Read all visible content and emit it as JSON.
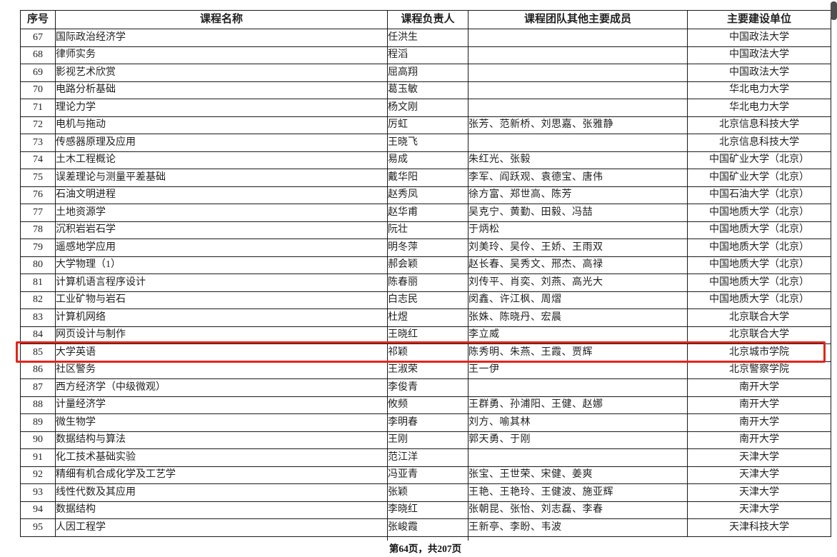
{
  "table": {
    "headers": [
      "序号",
      "课程名称",
      "课程负责人",
      "课程团队其他主要成员",
      "主要建设单位"
    ],
    "highlighted_row_no": "85",
    "rows": [
      {
        "no": "67",
        "course": "国际政治经济学",
        "leader": "任洪生",
        "members": "",
        "unit": "中国政法大学"
      },
      {
        "no": "68",
        "course": "律师实务",
        "leader": "程滔",
        "members": "",
        "unit": "中国政法大学"
      },
      {
        "no": "69",
        "course": "影视艺术欣赏",
        "leader": "屈高翔",
        "members": "",
        "unit": "中国政法大学"
      },
      {
        "no": "70",
        "course": "电路分析基础",
        "leader": "葛玉敏",
        "members": "",
        "unit": "华北电力大学"
      },
      {
        "no": "71",
        "course": "理论力学",
        "leader": "杨文刚",
        "members": "",
        "unit": "华北电力大学"
      },
      {
        "no": "72",
        "course": "电机与拖动",
        "leader": "厉虹",
        "members": "张芳、范新桥、刘思嘉、张雅静",
        "unit": "北京信息科技大学"
      },
      {
        "no": "73",
        "course": "传感器原理及应用",
        "leader": "王晓飞",
        "members": "",
        "unit": "北京信息科技大学"
      },
      {
        "no": "74",
        "course": "土木工程概论",
        "leader": "易成",
        "members": "朱红光、张毅",
        "unit": "中国矿业大学（北京）"
      },
      {
        "no": "75",
        "course": "误差理论与测量平差基础",
        "leader": "戴华阳",
        "members": "李军、阎跃观、袁德宝、唐伟",
        "unit": "中国矿业大学（北京）"
      },
      {
        "no": "76",
        "course": "石油文明进程",
        "leader": "赵秀凤",
        "members": "徐方富、郑世高、陈芳",
        "unit": "中国石油大学（北京）"
      },
      {
        "no": "77",
        "course": "土地资源学",
        "leader": "赵华甫",
        "members": "吴克宁、黄勤、田毅、冯喆",
        "unit": "中国地质大学（北京）"
      },
      {
        "no": "78",
        "course": "沉积岩岩石学",
        "leader": "阮壮",
        "members": "于炳松",
        "unit": "中国地质大学（北京）"
      },
      {
        "no": "79",
        "course": "遥感地学应用",
        "leader": "明冬萍",
        "members": "刘美玲、吴伶、王娇、王雨双",
        "unit": "中国地质大学（北京）"
      },
      {
        "no": "80",
        "course": "大学物理（1）",
        "leader": "郝会颖",
        "members": "赵长春、吴秀文、邢杰、高禄",
        "unit": "中国地质大学（北京）"
      },
      {
        "no": "81",
        "course": "计算机语言程序设计",
        "leader": "陈春丽",
        "members": "刘传平、肖奕、刘燕、高光大",
        "unit": "中国地质大学（北京）"
      },
      {
        "no": "82",
        "course": "工业矿物与岩石",
        "leader": "白志民",
        "members": "闵鑫、许江枫、周熠",
        "unit": "中国地质大学（北京）"
      },
      {
        "no": "83",
        "course": "计算机网络",
        "leader": "杜煜",
        "members": "张姝、陈晓丹、宏晨",
        "unit": "北京联合大学"
      },
      {
        "no": "84",
        "course": "网页设计与制作",
        "leader": "王晓红",
        "members": "李立威",
        "unit": "北京联合大学"
      },
      {
        "no": "85",
        "course": "大学英语",
        "leader": "祁颖",
        "members": "陈秀明、朱燕、王霞、贾辉",
        "unit": "北京城市学院"
      },
      {
        "no": "86",
        "course": "社区警务",
        "leader": "王淑荣",
        "members": "王一伊",
        "unit": "北京警察学院"
      },
      {
        "no": "87",
        "course": "西方经济学（中级微观）",
        "leader": "李俊青",
        "members": "",
        "unit": "南开大学"
      },
      {
        "no": "88",
        "course": "计量经济学",
        "leader": "攸频",
        "members": "王群勇、孙浦阳、王健、赵娜",
        "unit": "南开大学"
      },
      {
        "no": "89",
        "course": "微生物学",
        "leader": "李明春",
        "members": "刘方、喻其林",
        "unit": "南开大学"
      },
      {
        "no": "90",
        "course": "数据结构与算法",
        "leader": "王刚",
        "members": "郭天勇、于刚",
        "unit": "南开大学"
      },
      {
        "no": "91",
        "course": "化工技术基础实验",
        "leader": "范江洋",
        "members": "",
        "unit": "天津大学"
      },
      {
        "no": "92",
        "course": "精细有机合成化学及工艺学",
        "leader": "冯亚青",
        "members": "张宝、王世荣、宋健、姜爽",
        "unit": "天津大学"
      },
      {
        "no": "93",
        "course": "线性代数及其应用",
        "leader": "张颖",
        "members": "王艳、王艳玲、王健波、施亚辉",
        "unit": "天津大学"
      },
      {
        "no": "94",
        "course": "数据结构",
        "leader": "李晓红",
        "members": "张朝昆、张怡、刘志磊、李春",
        "unit": "天津大学"
      },
      {
        "no": "95",
        "course": "人因工程学",
        "leader": "张峻霞",
        "members": "王新亭、李盼、韦波",
        "unit": "天津科技大学"
      }
    ]
  },
  "footer": {
    "page_text": "第64页，共207页"
  },
  "colors": {
    "highlight_border": "#e1251c",
    "table_border": "#1a1a1a",
    "text": "#1f1f1f",
    "scrollbar_thumb": "#4f4f4f",
    "background": "#ffffff"
  }
}
